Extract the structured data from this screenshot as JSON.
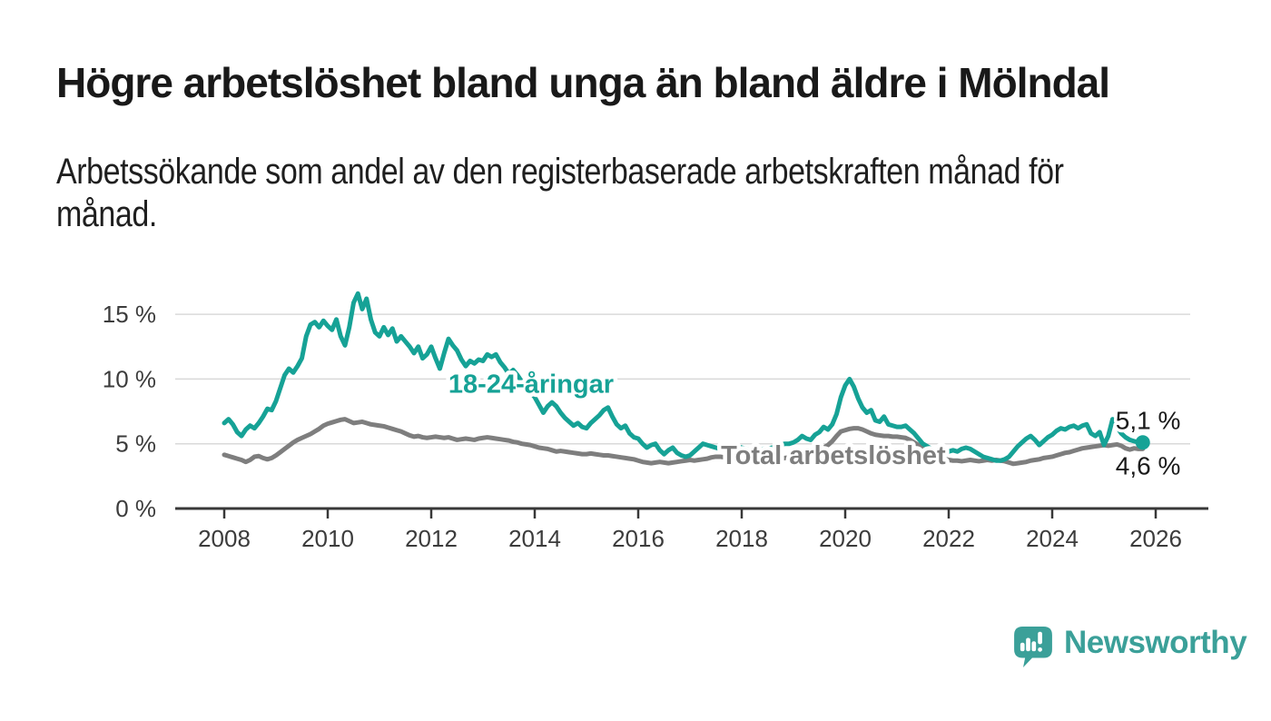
{
  "header": {
    "title": "Högre arbetslöshet bland unga än bland äldre i Mölndal",
    "subtitle_lines": [
      "Arbetssökande som andel av den registerbaserade arbetskraften månad för",
      "månad."
    ]
  },
  "chart_data": {
    "type": "line",
    "title": "Högre arbetslöshet bland unga än bland äldre i Mölndal",
    "subtitle": "Arbetssökande som andel av den registerbaserade arbetskraften månad för månad.",
    "x_unit": "monthly, January 2008 – October 2025",
    "x_start_year": 2008,
    "points_per_year": 12,
    "xlim": [
      2007.05,
      2027.0
    ],
    "ylim": [
      0,
      17.5
    ],
    "grid": "horizontal",
    "x_ticks": [
      2008,
      2010,
      2012,
      2014,
      2016,
      2018,
      2020,
      2022,
      2024,
      2026
    ],
    "y_ticks": [
      {
        "value": 0,
        "label": "0 %"
      },
      {
        "value": 5,
        "label": "5 %"
      },
      {
        "value": 10,
        "label": "10 %"
      },
      {
        "value": 15,
        "label": "15 %"
      }
    ],
    "series": [
      {
        "name": "18-24-åringar",
        "color": "#16a296",
        "line_label": {
          "text": "18-24-åringar",
          "year": 2013.93,
          "value": 9.65
        },
        "end_label": "5,1 %",
        "end_dot": true,
        "values": [
          6.6,
          6.9,
          6.5,
          5.9,
          5.6,
          6.1,
          6.4,
          6.2,
          6.6,
          7.1,
          7.7,
          7.6,
          8.3,
          9.3,
          10.3,
          10.8,
          10.5,
          11,
          11.6,
          13.3,
          14.2,
          14.4,
          14,
          14.5,
          14.1,
          13.8,
          14.6,
          13.3,
          12.6,
          14,
          15.9,
          16.6,
          15.4,
          16.2,
          14.6,
          13.6,
          13.3,
          14,
          13.4,
          13.9,
          12.9,
          13.3,
          12.9,
          12.5,
          12,
          12.5,
          11.6,
          11.9,
          12.5,
          11.6,
          10.8,
          12,
          13.1,
          12.6,
          12.2,
          11.5,
          11,
          11.4,
          11.2,
          11.5,
          11.4,
          11.9,
          11.7,
          11.9,
          11.3,
          10.9,
          10.4,
          10.7,
          10.3,
          9.8,
          9.4,
          9,
          8.6,
          8,
          7.4,
          7.9,
          8.2,
          7.9,
          7.4,
          7,
          6.7,
          6.4,
          6.6,
          6.3,
          6.2,
          6.6,
          6.9,
          7.2,
          7.6,
          7.8,
          7.1,
          6.5,
          6.2,
          6.4,
          5.8,
          5.5,
          5.4,
          5,
          4.7,
          4.9,
          5,
          4.5,
          4.2,
          4.5,
          4.7,
          4.3,
          4.1,
          4,
          4.1,
          4.4,
          4.7,
          5,
          4.9,
          4.8,
          4.7,
          4.6,
          4.7,
          4.8,
          4.9,
          4.8,
          4.7,
          4.6,
          4.5,
          4.4,
          4.5,
          4.6,
          4.6,
          4.7,
          4.8,
          4.9,
          5,
          5,
          5.1,
          5.3,
          5.6,
          5.4,
          5.3,
          5.7,
          5.9,
          6.3,
          6.1,
          6.5,
          7.3,
          8.6,
          9.5,
          10,
          9.4,
          8.5,
          7.8,
          7.4,
          7.6,
          6.8,
          6.7,
          7.1,
          6.5,
          6.4,
          6.3,
          6.3,
          6.4,
          6.1,
          5.8,
          5.4,
          5,
          4.8,
          4.6,
          4.5,
          4.4,
          4.4,
          4.4,
          4.5,
          4.4,
          4.6,
          4.7,
          4.6,
          4.4,
          4.2,
          4,
          3.9,
          3.8,
          3.7,
          3.7,
          3.8,
          4,
          4.4,
          4.8,
          5.1,
          5.4,
          5.6,
          5.3,
          4.9,
          5.2,
          5.5,
          5.7,
          6,
          6.2,
          6.1,
          6.3,
          6.4,
          6.2,
          6.4,
          6.5,
          5.8,
          5.6,
          5.9,
          4.9,
          5.6,
          6.9,
          6.3,
          5.8,
          5.5,
          5.3,
          5.2,
          5.1,
          5.1
        ]
      },
      {
        "name": "Total arbetslöshet",
        "color": "#7e7e7e",
        "line_label": {
          "text": "Total arbetslöshet",
          "year": 2019.77,
          "value": 4.15
        },
        "end_label": "4,6 %",
        "end_dot": false,
        "values": [
          4.15,
          4.05,
          3.95,
          3.85,
          3.75,
          3.6,
          3.75,
          4,
          4.05,
          3.9,
          3.8,
          3.9,
          4.1,
          4.35,
          4.6,
          4.85,
          5.1,
          5.3,
          5.45,
          5.6,
          5.75,
          5.95,
          6.15,
          6.4,
          6.55,
          6.65,
          6.75,
          6.85,
          6.9,
          6.75,
          6.6,
          6.65,
          6.7,
          6.6,
          6.5,
          6.45,
          6.4,
          6.35,
          6.25,
          6.15,
          6.05,
          5.95,
          5.8,
          5.65,
          5.55,
          5.6,
          5.5,
          5.45,
          5.5,
          5.55,
          5.5,
          5.45,
          5.5,
          5.4,
          5.3,
          5.35,
          5.4,
          5.35,
          5.3,
          5.4,
          5.45,
          5.5,
          5.45,
          5.4,
          5.35,
          5.3,
          5.25,
          5.15,
          5.1,
          5,
          4.95,
          4.9,
          4.8,
          4.7,
          4.65,
          4.6,
          4.5,
          4.4,
          4.45,
          4.4,
          4.35,
          4.3,
          4.25,
          4.2,
          4.2,
          4.25,
          4.2,
          4.15,
          4.1,
          4.1,
          4.05,
          4,
          3.95,
          3.9,
          3.85,
          3.8,
          3.7,
          3.6,
          3.55,
          3.5,
          3.55,
          3.6,
          3.55,
          3.5,
          3.55,
          3.6,
          3.65,
          3.7,
          3.75,
          3.7,
          3.75,
          3.8,
          3.85,
          3.95,
          4,
          4,
          3.95,
          3.9,
          3.85,
          3.8,
          3.75,
          3.7,
          3.65,
          3.6,
          3.6,
          3.65,
          3.7,
          3.75,
          3.8,
          3.85,
          3.9,
          3.95,
          4,
          4.05,
          4.15,
          4.25,
          4.35,
          4.45,
          4.55,
          4.7,
          4.9,
          5.2,
          5.6,
          5.95,
          6.05,
          6.15,
          6.2,
          6.2,
          6.1,
          5.95,
          5.8,
          5.7,
          5.65,
          5.6,
          5.6,
          5.55,
          5.55,
          5.5,
          5.45,
          5.3,
          5.1,
          4.9,
          4.7,
          4.5,
          4.3,
          4.15,
          4,
          3.85,
          3.75,
          3.7,
          3.7,
          3.65,
          3.7,
          3.75,
          3.7,
          3.65,
          3.7,
          3.75,
          3.7,
          3.75,
          3.7,
          3.65,
          3.55,
          3.45,
          3.5,
          3.55,
          3.6,
          3.7,
          3.75,
          3.8,
          3.9,
          3.95,
          4,
          4.1,
          4.2,
          4.3,
          4.35,
          4.45,
          4.55,
          4.65,
          4.7,
          4.75,
          4.8,
          4.85,
          4.9,
          4.85,
          4.9,
          4.95,
          4.85,
          4.65,
          4.55,
          4.65,
          4.6,
          4.6
        ]
      }
    ]
  },
  "branding": {
    "name": "Newsworthy",
    "color": "#3ba099"
  }
}
